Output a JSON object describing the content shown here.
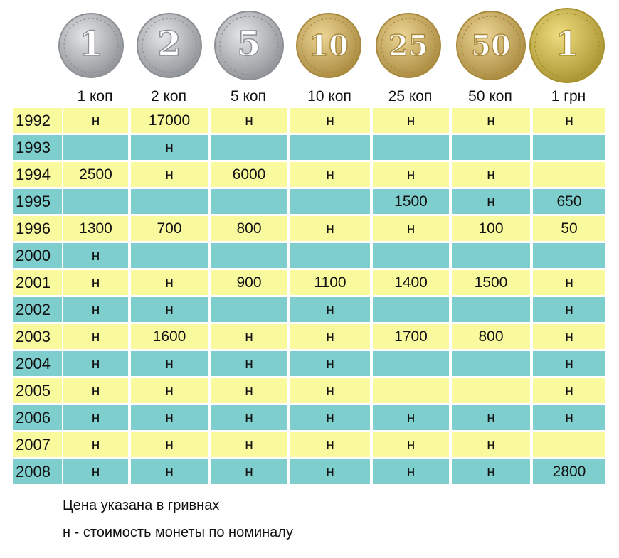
{
  "colors": {
    "yellow": "#f9f99e",
    "teal": "#7fcece",
    "silver": "#c9cbcd",
    "brass": "#d8bc6e",
    "gold": "#d8c45e"
  },
  "coins": [
    {
      "label": "1 коп",
      "emblem": "1",
      "metal": "silver"
    },
    {
      "label": "2 коп",
      "emblem": "2",
      "metal": "silver"
    },
    {
      "label": "5 коп",
      "emblem": "5",
      "metal": "silver"
    },
    {
      "label": "10 коп",
      "emblem": "10",
      "metal": "brass"
    },
    {
      "label": "25 коп",
      "emblem": "25",
      "metal": "brass"
    },
    {
      "label": "50 коп",
      "emblem": "50",
      "metal": "brass"
    },
    {
      "label": "1 грн",
      "emblem": "1",
      "metal": "gold"
    }
  ],
  "rows": [
    {
      "year": "1992",
      "color": "yellow",
      "cells": [
        "н",
        "17000",
        "н",
        "н",
        "н",
        "н",
        "н"
      ]
    },
    {
      "year": "1993",
      "color": "teal",
      "cells": [
        "",
        "н",
        "",
        "",
        "",
        "",
        ""
      ]
    },
    {
      "year": "1994",
      "color": "yellow",
      "cells": [
        "2500",
        "н",
        "6000",
        "н",
        "н",
        "н",
        ""
      ]
    },
    {
      "year": "1995",
      "color": "teal",
      "cells": [
        "",
        "",
        "",
        "",
        "1500",
        "н",
        "650"
      ]
    },
    {
      "year": "1996",
      "color": "yellow",
      "cells": [
        "1300",
        "700",
        "800",
        "н",
        "н",
        "100",
        "50"
      ]
    },
    {
      "year": "2000",
      "color": "teal",
      "cells": [
        "н",
        "",
        "",
        "",
        "",
        "",
        ""
      ]
    },
    {
      "year": "2001",
      "color": "yellow",
      "cells": [
        "н",
        "н",
        "900",
        "1100",
        "1400",
        "1500",
        "н"
      ]
    },
    {
      "year": "2002",
      "color": "teal",
      "cells": [
        "н",
        "н",
        "",
        "н",
        "",
        "",
        "н"
      ]
    },
    {
      "year": "2003",
      "color": "yellow",
      "cells": [
        "н",
        "1600",
        "н",
        "н",
        "1700",
        "800",
        "н"
      ]
    },
    {
      "year": "2004",
      "color": "teal",
      "cells": [
        "н",
        "н",
        "н",
        "н",
        "",
        "",
        "н"
      ]
    },
    {
      "year": "2005",
      "color": "yellow",
      "cells": [
        "н",
        "н",
        "н",
        "н",
        "",
        "",
        "н"
      ]
    },
    {
      "year": "2006",
      "color": "teal",
      "cells": [
        "н",
        "н",
        "н",
        "н",
        "н",
        "н",
        "н"
      ]
    },
    {
      "year": "2007",
      "color": "yellow",
      "cells": [
        "н",
        "н",
        "н",
        "н",
        "н",
        "н",
        ""
      ]
    },
    {
      "year": "2008",
      "color": "teal",
      "cells": [
        "н",
        "н",
        "н",
        "н",
        "н",
        "н",
        "2800"
      ]
    }
  ],
  "notes": {
    "price_note": "Цена указана в гривнах",
    "legend_note": "н - стоимость монеты по номиналу"
  }
}
